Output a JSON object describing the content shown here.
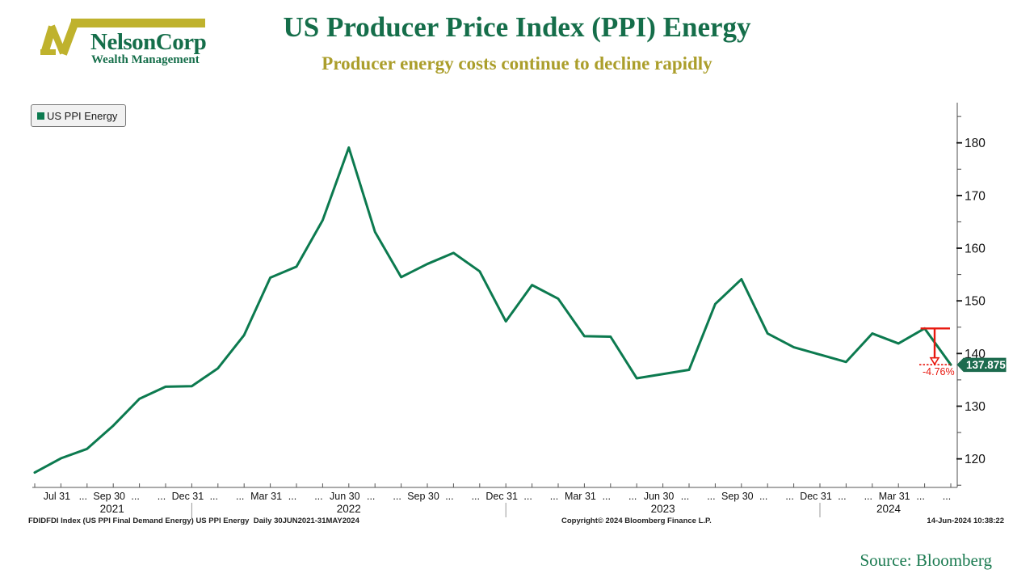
{
  "header": {
    "logo_name": "NelsonCorp",
    "logo_tagline": "Wealth Management",
    "title": "US Producer Price Index (PPI) Energy",
    "subtitle": "Producer energy costs continue to decline rapidly"
  },
  "legend": {
    "label": "US PPI Energy",
    "marker": "green-square"
  },
  "chart_data": {
    "type": "line",
    "title": "US Producer Price Index (PPI) Energy",
    "subtitle": "Producer energy costs continue to decline rapidly",
    "legend_position": "top-left",
    "axis_side": "right",
    "grid": false,
    "ylim": [
      115,
      185
    ],
    "yticks": [
      120,
      130,
      140,
      150,
      160,
      170,
      180
    ],
    "y_minor_ticks": [
      115,
      125,
      135,
      145,
      155,
      165,
      175,
      185
    ],
    "x": [
      "Jun 2021",
      "Jul 2021",
      "Aug 2021",
      "Sep 2021",
      "Oct 2021",
      "Nov 2021",
      "Dec 2021",
      "Jan 2022",
      "Feb 2022",
      "Mar 2022",
      "Apr 2022",
      "May 2022",
      "Jun 2022",
      "Jul 2022",
      "Aug 2022",
      "Sep 2022",
      "Oct 2022",
      "Nov 2022",
      "Dec 2022",
      "Jan 2023",
      "Feb 2023",
      "Mar 2023",
      "Apr 2023",
      "May 2023",
      "Jun 2023",
      "Jul 2023",
      "Aug 2023",
      "Sep 2023",
      "Oct 2023",
      "Nov 2023",
      "Dec 2023",
      "Jan 2024",
      "Feb 2024",
      "Mar 2024",
      "Apr 2024",
      "May 2024"
    ],
    "series": [
      {
        "name": "US PPI Energy",
        "color": "#0c7a4f",
        "values": [
          117.4,
          120.1,
          121.9,
          126.3,
          131.4,
          133.7,
          133.8,
          137.2,
          143.5,
          154.4,
          156.5,
          165.3,
          179.1,
          163.1,
          154.5,
          157.0,
          159.1,
          155.6,
          146.1,
          153.0,
          150.4,
          143.3,
          143.2,
          135.3,
          136.1,
          136.9,
          149.4,
          154.1,
          143.8,
          141.2,
          139.8,
          138.4,
          143.8,
          141.9,
          144.76,
          137.875
        ]
      }
    ],
    "x_tick_labels": [
      {
        "m": 1,
        "t": "Jul 31"
      },
      {
        "m": 2,
        "t": "..."
      },
      {
        "m": 3,
        "t": "Sep 30"
      },
      {
        "m": 4,
        "t": "..."
      },
      {
        "m": 5,
        "t": "..."
      },
      {
        "m": 6,
        "t": "Dec 31"
      },
      {
        "m": 7,
        "t": "..."
      },
      {
        "m": 8,
        "t": "..."
      },
      {
        "m": 9,
        "t": "Mar 31"
      },
      {
        "m": 10,
        "t": "..."
      },
      {
        "m": 11,
        "t": "..."
      },
      {
        "m": 12,
        "t": "Jun 30"
      },
      {
        "m": 13,
        "t": "..."
      },
      {
        "m": 14,
        "t": "..."
      },
      {
        "m": 15,
        "t": "Sep 30"
      },
      {
        "m": 16,
        "t": "..."
      },
      {
        "m": 17,
        "t": "..."
      },
      {
        "m": 18,
        "t": "Dec 31"
      },
      {
        "m": 19,
        "t": "..."
      },
      {
        "m": 20,
        "t": "..."
      },
      {
        "m": 21,
        "t": "Mar 31"
      },
      {
        "m": 22,
        "t": "..."
      },
      {
        "m": 23,
        "t": "..."
      },
      {
        "m": 24,
        "t": "Jun 30"
      },
      {
        "m": 25,
        "t": "..."
      },
      {
        "m": 26,
        "t": "..."
      },
      {
        "m": 27,
        "t": "Sep 30"
      },
      {
        "m": 28,
        "t": "..."
      },
      {
        "m": 29,
        "t": "..."
      },
      {
        "m": 30,
        "t": "Dec 31"
      },
      {
        "m": 31,
        "t": "..."
      },
      {
        "m": 32,
        "t": "..."
      },
      {
        "m": 33,
        "t": "Mar 31"
      },
      {
        "m": 34,
        "t": "..."
      },
      {
        "m": 35,
        "t": "..."
      }
    ],
    "year_labels": [
      "2021",
      "2022",
      "2023",
      "2024"
    ],
    "year_divider_months": [
      6,
      18,
      30
    ],
    "last_value_label": "137.875",
    "annotation": {
      "label": "-4.76%",
      "from_index": 34,
      "to_index": 35,
      "color": "#e8180f"
    }
  },
  "footer": {
    "left": "FDIDFDI Index (US PPI Final Demand Energy) US PPI Energy  Daily 30JUN2021-31MAY2024",
    "center": "Copyright© 2024 Bloomberg Finance L.P.",
    "right": "14-Jun-2024 10:38:22"
  },
  "source": "Source: Bloomberg",
  "colors": {
    "green": "#156e4a",
    "line": "#0c7a4f",
    "gold": "#ab9e2b",
    "logo_gold": "#bfb22d",
    "red": "#e8180f",
    "tag_bg": "#1c6b4e",
    "axis": "#777",
    "text": "#111"
  }
}
